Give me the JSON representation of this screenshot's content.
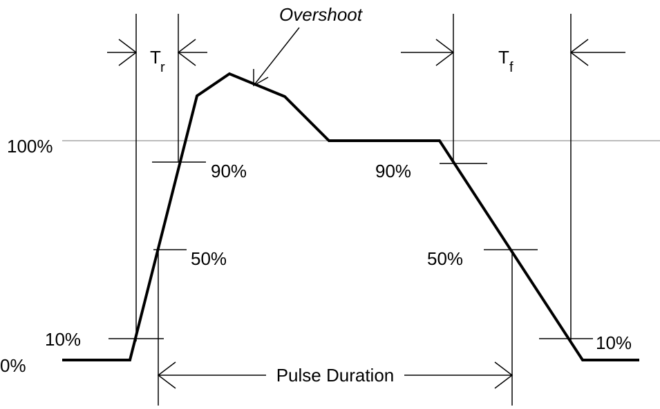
{
  "overshoot_label": "Overshoot",
  "rise_time": {
    "symbol": "T",
    "subscript": "r"
  },
  "fall_time": {
    "symbol": "T",
    "subscript": "f"
  },
  "levels": {
    "top": "100%",
    "ninety_left": "90%",
    "ninety_right": "90%",
    "fifty_left": "50%",
    "fifty_right": "50%",
    "ten_left": "10%",
    "ten_right": "10%",
    "zero": "0%"
  },
  "pulse_duration": "Pulse Duration"
}
